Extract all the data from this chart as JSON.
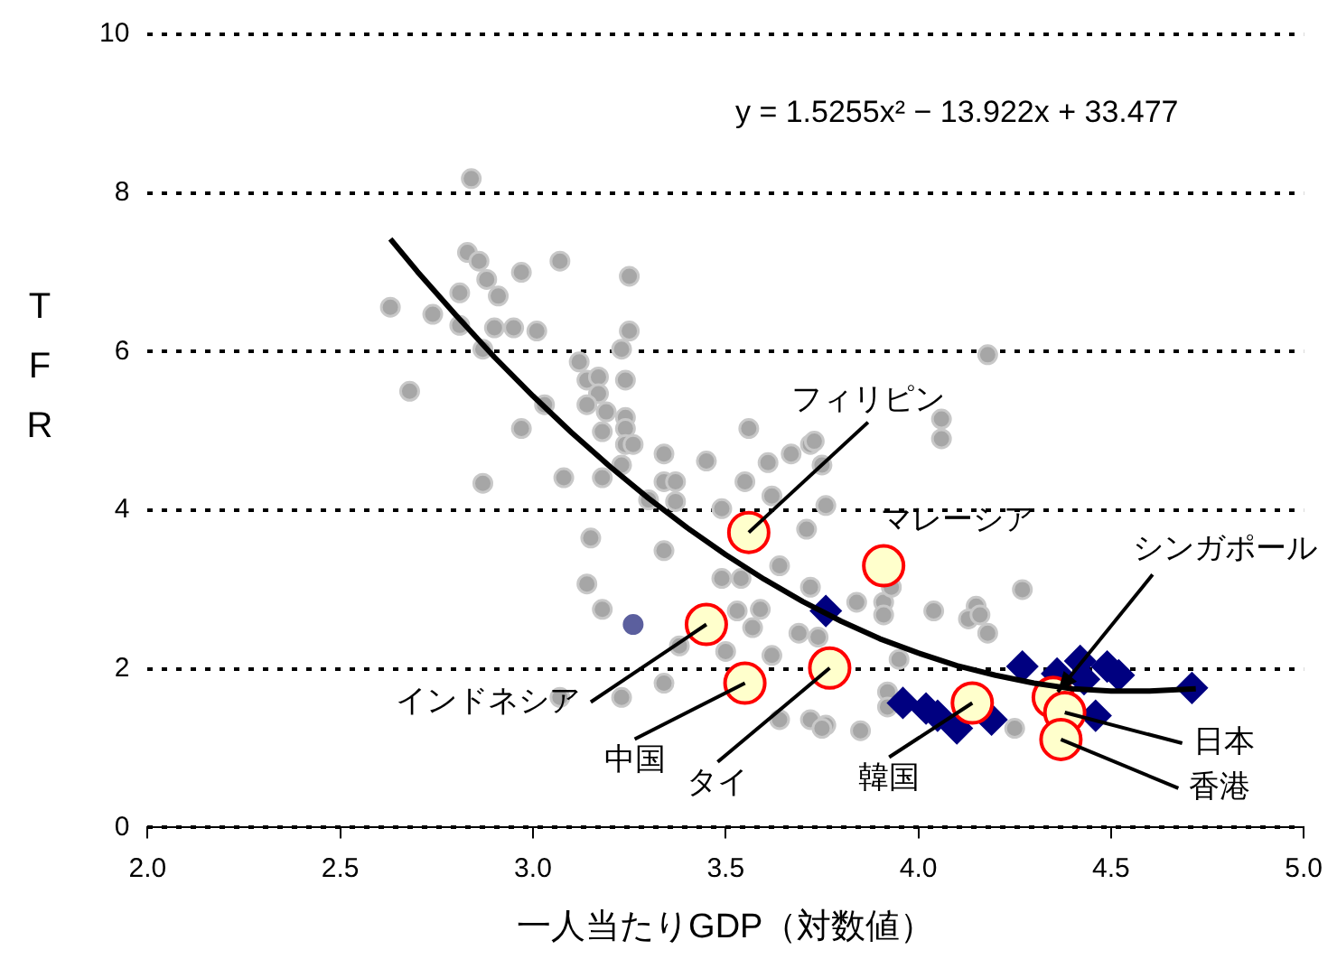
{
  "chart_data": {
    "type": "scatter",
    "xlabel": "一人当たりGDP（対数値）",
    "ylabel": "TFR",
    "xlim": [
      2,
      5
    ],
    "xticks": [
      {
        "value": 2,
        "label": "2.0"
      },
      {
        "value": 2.5,
        "label": "2.5"
      },
      {
        "value": 3,
        "label": "3.0"
      },
      {
        "value": 3.5,
        "label": "3.5"
      },
      {
        "value": 4,
        "label": "4.0"
      },
      {
        "value": 4.5,
        "label": "4.5"
      },
      {
        "value": 5,
        "label": "5.0"
      }
    ],
    "ylim": [
      0,
      10
    ],
    "yticks": [
      0,
      2,
      4,
      6,
      8,
      10
    ],
    "grid": "y",
    "legend": false,
    "series": [
      {
        "color": "#a6a6a6",
        "marker": "circle",
        "x": [
          2.84,
          2.83,
          2.86,
          2.88,
          2.91,
          2.97,
          3.07,
          3.25,
          2.63,
          2.74,
          2.81,
          2.81,
          2.9,
          2.95,
          3.01,
          3.23,
          3.25,
          2.68,
          2.87,
          3.12,
          3.14,
          3.17,
          3.17,
          3.14,
          3.19,
          3.24,
          3.24,
          3.24,
          3.24,
          3.26,
          3.18,
          3.03,
          2.97,
          2.87,
          3.08,
          3.18,
          3.23,
          3.34,
          3.34,
          3.37,
          3.37,
          3.45,
          3.3,
          3.56,
          3.55,
          3.61,
          3.67,
          3.72,
          3.75,
          3.49,
          3.62,
          3.76,
          4.06,
          4.06,
          3.15,
          3.34,
          3.64,
          3.71,
          3.14,
          3.18,
          3.49,
          3.54,
          3.72,
          3.53,
          3.59,
          3.57,
          3.69,
          3.74,
          3.84,
          3.91,
          3.91,
          4.04,
          3.93,
          3.38,
          3.5,
          3.62,
          3.23,
          3.34,
          3.64,
          3.72,
          3.76,
          3.85,
          3.92,
          3.92,
          4.15,
          4.13,
          4.18,
          3.73,
          4.27,
          4.16,
          4.18,
          3.95,
          4.25,
          3.75,
          3.07
        ],
        "values": [
          8.18,
          7.25,
          7.14,
          6.91,
          6.7,
          7.0,
          7.14,
          6.95,
          6.56,
          6.47,
          6.74,
          6.33,
          6.3,
          6.3,
          6.26,
          6.03,
          6.26,
          5.5,
          6.03,
          5.87,
          5.64,
          5.68,
          5.47,
          5.33,
          5.24,
          5.64,
          5.17,
          5.03,
          4.83,
          4.83,
          4.99,
          5.33,
          5.03,
          4.34,
          4.41,
          4.41,
          4.57,
          4.71,
          4.36,
          4.36,
          4.11,
          4.62,
          4.13,
          5.03,
          4.36,
          4.6,
          4.71,
          4.83,
          4.57,
          4.02,
          4.18,
          4.06,
          5.15,
          4.9,
          3.65,
          3.49,
          3.3,
          3.76,
          3.07,
          2.75,
          3.14,
          3.14,
          3.03,
          2.73,
          2.75,
          2.52,
          2.45,
          2.4,
          2.84,
          2.84,
          2.68,
          2.73,
          3.03,
          2.29,
          2.22,
          2.17,
          1.64,
          1.82,
          1.36,
          1.36,
          1.29,
          1.22,
          1.71,
          1.52,
          2.79,
          2.63,
          5.96,
          4.87,
          3.0,
          2.68,
          2.45,
          2.12,
          1.25,
          1.25,
          1.64
        ]
      },
      {
        "color": "#5b5f9e",
        "marker": "circle",
        "x": [
          3.26
        ],
        "values": [
          2.56
        ]
      },
      {
        "color": "#000080",
        "marker": "diamond",
        "x": [
          3.76,
          3.96,
          4.02,
          4.05,
          4.1,
          4.19,
          4.27,
          4.36,
          4.42,
          4.43,
          4.49,
          4.52,
          4.46,
          4.71
        ],
        "values": [
          2.73,
          1.57,
          1.5,
          1.41,
          1.25,
          1.36,
          2.03,
          1.94,
          2.1,
          1.87,
          2.03,
          1.92,
          1.41,
          1.76
        ]
      },
      {
        "color": "#ffffcc",
        "marker": "circle",
        "x": [
          3.56,
          3.91,
          3.45,
          3.55,
          3.77,
          4.14,
          4.35,
          4.38,
          4.37
        ],
        "values": [
          3.72,
          3.3,
          2.56,
          1.82,
          2.01,
          1.57,
          1.64,
          1.45,
          1.11
        ]
      },
      {
        "type": "line",
        "color": "#000000",
        "marker": "none",
        "x": [
          2.63,
          2.7,
          2.8,
          2.9,
          3.0,
          3.1,
          3.2,
          3.3,
          3.4,
          3.5,
          3.6,
          3.7,
          3.8,
          3.9,
          4.0,
          4.1,
          4.2,
          4.3,
          4.4,
          4.5,
          4.6,
          4.72
        ],
        "values": [
          7.42,
          7.01,
          6.46,
          5.93,
          5.44,
          4.98,
          4.55,
          4.15,
          3.78,
          3.44,
          3.13,
          2.85,
          2.6,
          2.38,
          2.2,
          2.04,
          1.92,
          1.82,
          1.75,
          1.72,
          1.72,
          1.75
        ]
      }
    ],
    "annotations": [
      "y = 1.5255x² − 13.922x + 33.477",
      {
        "text": "フィリピン",
        "x": 3.56,
        "y": 3.72
      },
      {
        "text": "マレーシア",
        "x": 3.91,
        "y": 3.3
      },
      {
        "text": "インドネシア",
        "x": 3.45,
        "y": 2.56
      },
      {
        "text": "中国",
        "x": 3.55,
        "y": 1.82
      },
      {
        "text": "タイ",
        "x": 3.77,
        "y": 2.01
      },
      {
        "text": "韓国",
        "x": 4.14,
        "y": 1.57
      },
      {
        "text": "シンガポール",
        "x": 4.35,
        "y": 1.64
      },
      {
        "text": "日本",
        "x": 4.38,
        "y": 1.45
      },
      {
        "text": "香港",
        "x": 4.37,
        "y": 1.11
      }
    ]
  }
}
